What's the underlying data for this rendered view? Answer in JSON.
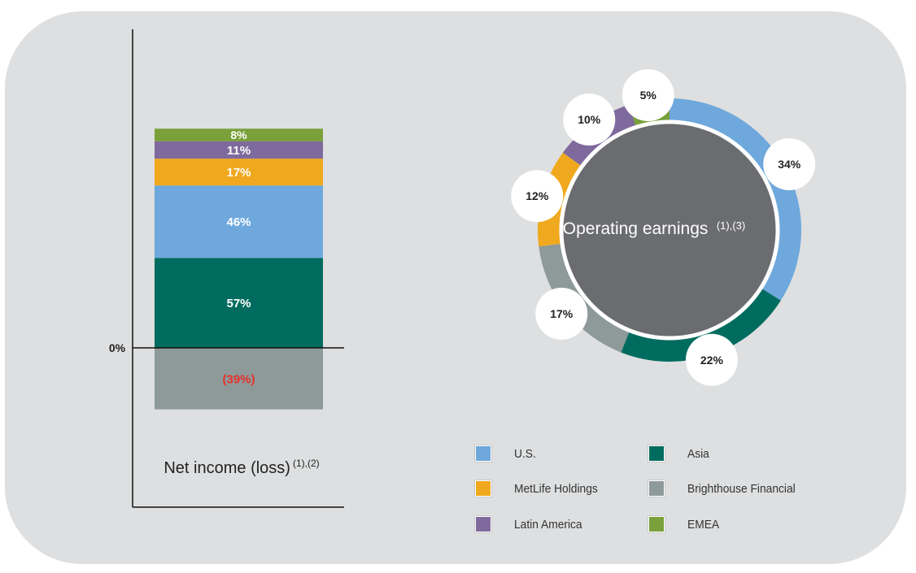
{
  "chart_data": [
    {
      "type": "bar",
      "title": "Net income (loss)",
      "title_note": "(1),(2)",
      "baseline_label": "0%",
      "categories": [
        "U.S.",
        "Asia",
        "MetLife Holdings",
        "Brighthouse Financial",
        "Latin America",
        "EMEA"
      ],
      "values": [
        46,
        57,
        17,
        -39,
        11,
        8
      ],
      "value_labels": [
        "46%",
        "57%",
        "17%",
        "(39%)",
        "11%",
        "8%"
      ],
      "stack_order": [
        "Asia",
        "U.S.",
        "MetLife Holdings",
        "Latin America",
        "EMEA"
      ],
      "unit": "%"
    },
    {
      "type": "pie",
      "title": "Operating earnings",
      "title_note": "(1),(3)",
      "categories": [
        "U.S.",
        "Asia",
        "Brighthouse Financial",
        "MetLife Holdings",
        "Latin America",
        "EMEA"
      ],
      "values": [
        34,
        22,
        17,
        12,
        10,
        5
      ],
      "value_labels": [
        "34%",
        "22%",
        "17%",
        "12%",
        "10%",
        "5%"
      ],
      "unit": "%"
    }
  ],
  "legend": [
    {
      "label": "U.S.",
      "color": "#6ea8dc"
    },
    {
      "label": "Asia",
      "color": "#006c5f"
    },
    {
      "label": "MetLife Holdings",
      "color": "#f0a91e"
    },
    {
      "label": "Brighthouse Financial",
      "color": "#8d9a99"
    },
    {
      "label": "Latin America",
      "color": "#7e6a9c"
    },
    {
      "label": "EMEA",
      "color": "#79a03a"
    }
  ],
  "colors": {
    "panel": "#dedfe0",
    "center": "#6b6c70",
    "negative_text": "#e8302c",
    "label_text": "#ffffff",
    "bubble": "#ffffff",
    "axis": "#111111"
  }
}
